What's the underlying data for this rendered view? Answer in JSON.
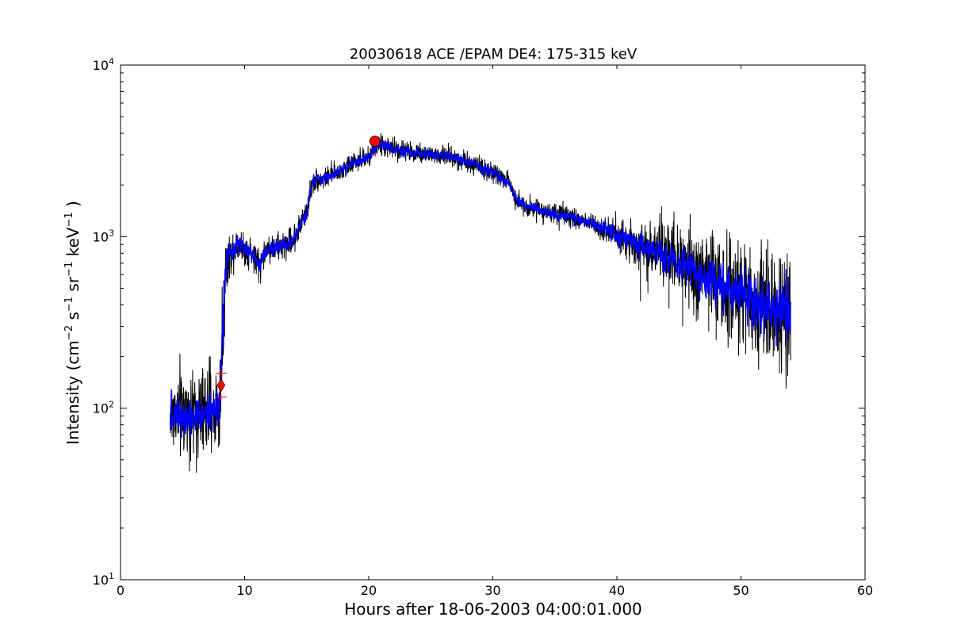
{
  "chart_data": {
    "type": "line",
    "title": "20030618 ACE /EPAM DE4: 175-315 keV",
    "xlabel": "Hours after 18-06-2003 04:00:01.000",
    "ylabel": {
      "prefix": "Intensity (cm",
      "exp1": "−2",
      "s": " s",
      "exp2": "−1",
      "sr": " sr",
      "exp3": "−1",
      "kev": " keV",
      "exp4": "−1",
      "suffix": " )"
    },
    "xlim": [
      0,
      60
    ],
    "ylim": [
      10,
      10000
    ],
    "yscale": "log",
    "grid": false,
    "x_ticks": [
      {
        "value": 0,
        "label": "0"
      },
      {
        "value": 10,
        "label": "10"
      },
      {
        "value": 20,
        "label": "20"
      },
      {
        "value": 30,
        "label": "30"
      },
      {
        "value": 40,
        "label": "40"
      },
      {
        "value": 50,
        "label": "50"
      },
      {
        "value": 60,
        "label": "60"
      }
    ],
    "y_ticks": [
      {
        "value": 10,
        "base": "10",
        "exp": "1"
      },
      {
        "value": 100,
        "base": "10",
        "exp": "2"
      },
      {
        "value": 1000,
        "base": "10",
        "exp": "3"
      },
      {
        "value": 10000,
        "base": "10",
        "exp": "4"
      }
    ],
    "series": [
      {
        "color": "#000000",
        "style": "raw",
        "x": [
          4.0,
          5.0,
          6.0,
          7.0,
          7.8,
          8.05,
          8.2,
          8.3,
          8.5,
          8.8,
          9.2,
          9.6,
          10.0,
          10.4,
          10.8,
          11.2,
          11.5,
          12.0,
          13.0,
          13.9,
          14.6,
          15.0,
          15.5,
          16.5,
          17.5,
          18.5,
          19.5,
          20.2,
          20.6,
          21.5,
          22.5,
          23.5,
          24.5,
          25.5,
          26.5,
          27.5,
          28.5,
          29.5,
          30.5,
          31.3,
          31.7,
          32.3,
          33.5,
          35.0,
          36.5,
          38.0,
          40.0,
          42.0,
          44.0,
          46.0,
          48.0,
          50.0,
          52.0,
          54.0
        ],
        "y": [
          92,
          95,
          90,
          98,
          100,
          105,
          240,
          360,
          650,
          780,
          850,
          930,
          820,
          820,
          760,
          660,
          780,
          860,
          880,
          950,
          1220,
          1380,
          2100,
          2200,
          2380,
          2600,
          2800,
          2950,
          3450,
          3350,
          3200,
          3100,
          3050,
          2980,
          2950,
          2800,
          2650,
          2450,
          2250,
          2050,
          1750,
          1550,
          1450,
          1350,
          1280,
          1200,
          1020,
          880,
          760,
          640,
          540,
          460,
          390,
          340
        ],
        "noise": [
          0.13,
          0.13,
          0.13,
          0.13,
          0.13,
          0.13,
          0.18,
          0.18,
          0.08,
          0.06,
          0.05,
          0.05,
          0.05,
          0.05,
          0.05,
          0.05,
          0.04,
          0.04,
          0.04,
          0.04,
          0.04,
          0.04,
          0.03,
          0.03,
          0.03,
          0.03,
          0.03,
          0.03,
          0.03,
          0.03,
          0.03,
          0.03,
          0.03,
          0.03,
          0.03,
          0.03,
          0.03,
          0.03,
          0.03,
          0.03,
          0.03,
          0.03,
          0.03,
          0.03,
          0.03,
          0.03,
          0.05,
          0.07,
          0.09,
          0.11,
          0.13,
          0.15,
          0.17,
          0.18
        ]
      },
      {
        "color": "#0000ff",
        "style": "smoothed",
        "x": [
          4.0,
          5.0,
          6.0,
          7.0,
          7.8,
          8.05,
          8.2,
          8.3,
          8.5,
          8.8,
          9.2,
          9.6,
          10.0,
          10.4,
          10.8,
          11.2,
          11.5,
          12.0,
          13.0,
          13.9,
          14.6,
          15.0,
          15.5,
          16.5,
          17.5,
          18.5,
          19.5,
          20.2,
          20.6,
          21.5,
          22.5,
          23.5,
          24.5,
          25.5,
          26.5,
          27.5,
          28.5,
          29.5,
          30.5,
          31.3,
          31.7,
          32.3,
          33.5,
          35.0,
          36.5,
          38.0,
          40.0,
          42.0,
          44.0,
          46.0,
          48.0,
          50.0,
          52.0,
          54.0
        ],
        "y": [
          92,
          95,
          90,
          98,
          100,
          105,
          240,
          360,
          650,
          780,
          850,
          930,
          820,
          820,
          760,
          660,
          780,
          860,
          880,
          950,
          1220,
          1380,
          2100,
          2200,
          2380,
          2600,
          2800,
          2950,
          3450,
          3350,
          3200,
          3100,
          3050,
          2980,
          2950,
          2800,
          2650,
          2450,
          2250,
          2050,
          1750,
          1550,
          1450,
          1350,
          1280,
          1200,
          1020,
          880,
          760,
          640,
          540,
          460,
          390,
          340
        ],
        "noise": [
          0.06,
          0.06,
          0.06,
          0.06,
          0.06,
          0.06,
          0.1,
          0.1,
          0.04,
          0.03,
          0.025,
          0.025,
          0.025,
          0.025,
          0.025,
          0.025,
          0.02,
          0.02,
          0.02,
          0.02,
          0.02,
          0.02,
          0.015,
          0.015,
          0.015,
          0.015,
          0.015,
          0.015,
          0.015,
          0.015,
          0.015,
          0.015,
          0.015,
          0.015,
          0.015,
          0.015,
          0.015,
          0.015,
          0.015,
          0.015,
          0.015,
          0.015,
          0.015,
          0.015,
          0.015,
          0.015,
          0.025,
          0.035,
          0.045,
          0.055,
          0.065,
          0.07,
          0.08,
          0.09
        ]
      }
    ],
    "spikes": [
      {
        "x": 41.9,
        "y": 420
      },
      {
        "x": 42.5,
        "y": 470
      },
      {
        "x": 43.1,
        "y": 900
      },
      {
        "x": 43.6,
        "y": 1500
      },
      {
        "x": 44.2,
        "y": 380
      },
      {
        "x": 44.6,
        "y": 1400
      },
      {
        "x": 45.3,
        "y": 300
      },
      {
        "x": 45.8,
        "y": 1100
      },
      {
        "x": 46.4,
        "y": 320
      },
      {
        "x": 46.9,
        "y": 900
      },
      {
        "x": 47.4,
        "y": 280
      },
      {
        "x": 48.0,
        "y": 250
      },
      {
        "x": 48.6,
        "y": 820
      },
      {
        "x": 49.1,
        "y": 260
      },
      {
        "x": 49.7,
        "y": 720
      },
      {
        "x": 50.2,
        "y": 240
      },
      {
        "x": 50.8,
        "y": 650
      },
      {
        "x": 51.4,
        "y": 220
      },
      {
        "x": 52.0,
        "y": 560
      },
      {
        "x": 52.6,
        "y": 200
      },
      {
        "x": 53.1,
        "y": 160
      },
      {
        "x": 53.6,
        "y": 520
      },
      {
        "x": 54.0,
        "y": 190
      }
    ],
    "markers": [
      {
        "type": "circle",
        "x": 20.5,
        "y": 3600,
        "color": "#ff0000"
      },
      {
        "type": "diamond",
        "x": 8.1,
        "y": 136,
        "color": "#ff0000"
      },
      {
        "type": "plus",
        "x": 8.1,
        "y": 160,
        "color": "#ff0000"
      },
      {
        "type": "plus",
        "x": 8.1,
        "y": 116,
        "color": "#ff0000"
      }
    ]
  }
}
